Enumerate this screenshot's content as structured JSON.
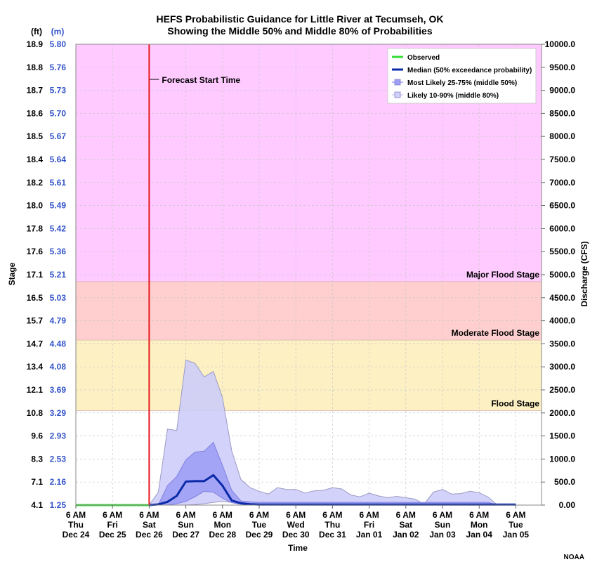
{
  "chart_data": {
    "type": "area",
    "title": "HEFS Probabilistic Guidance for Little River at Tecumseh, OK",
    "subtitle": "Showing the Middle 50% and Middle 80% of Probabilities",
    "xlabel": "Time",
    "ylabel_left": "Stage",
    "ylabel_right": "Discharge (CFS)",
    "unit_ft": "(ft)",
    "unit_m": "(m)",
    "xlim_days": [
      0,
      12.7
    ],
    "ylim_cfs": [
      0,
      10000
    ],
    "x_ticks": [
      {
        "d": 0,
        "l1": "6 AM",
        "l2": "Thu",
        "l3": "Dec 24"
      },
      {
        "d": 1,
        "l1": "6 AM",
        "l2": "Fri",
        "l3": "Dec 25"
      },
      {
        "d": 2,
        "l1": "6 AM",
        "l2": "Sat",
        "l3": "Dec 26"
      },
      {
        "d": 3,
        "l1": "6 AM",
        "l2": "Sun",
        "l3": "Dec 27"
      },
      {
        "d": 4,
        "l1": "6 AM",
        "l2": "Mon",
        "l3": "Dec 28"
      },
      {
        "d": 5,
        "l1": "6 AM",
        "l2": "Tue",
        "l3": "Dec 29"
      },
      {
        "d": 6,
        "l1": "6 AM",
        "l2": "Wed",
        "l3": "Dec 30"
      },
      {
        "d": 7,
        "l1": "6 AM",
        "l2": "Thu",
        "l3": "Dec 31"
      },
      {
        "d": 8,
        "l1": "6 AM",
        "l2": "Fri",
        "l3": "Jan 01"
      },
      {
        "d": 9,
        "l1": "6 AM",
        "l2": "Sat",
        "l3": "Jan 02"
      },
      {
        "d": 10,
        "l1": "6 AM",
        "l2": "Sun",
        "l3": "Jan 03"
      },
      {
        "d": 11,
        "l1": "6 AM",
        "l2": "Mon",
        "l3": "Jan 04"
      },
      {
        "d": 12,
        "l1": "6 AM",
        "l2": "Tue",
        "l3": "Jan 05"
      }
    ],
    "y_ticks": [
      {
        "cfs": 0,
        "ft": "4.1",
        "m": "1.25",
        "r": "0.00"
      },
      {
        "cfs": 500,
        "ft": "7.1",
        "m": "2.16",
        "r": "500.0"
      },
      {
        "cfs": 1000,
        "ft": "8.3",
        "m": "2.53",
        "r": "1000.0"
      },
      {
        "cfs": 1500,
        "ft": "9.6",
        "m": "2.93",
        "r": "1500.0"
      },
      {
        "cfs": 2000,
        "ft": "10.8",
        "m": "3.29",
        "r": "2000.0"
      },
      {
        "cfs": 2500,
        "ft": "12.1",
        "m": "3.69",
        "r": "2500.0"
      },
      {
        "cfs": 3000,
        "ft": "13.4",
        "m": "4.08",
        "r": "3000.0"
      },
      {
        "cfs": 3500,
        "ft": "14.7",
        "m": "4.48",
        "r": "3500.0"
      },
      {
        "cfs": 4000,
        "ft": "15.7",
        "m": "4.79",
        "r": "4000.0"
      },
      {
        "cfs": 4500,
        "ft": "16.5",
        "m": "5.03",
        "r": "4500.0"
      },
      {
        "cfs": 5000,
        "ft": "17.1",
        "m": "5.21",
        "r": "5000.0"
      },
      {
        "cfs": 5500,
        "ft": "17.6",
        "m": "5.36",
        "r": "5500.0"
      },
      {
        "cfs": 6000,
        "ft": "17.8",
        "m": "5.42",
        "r": "6000.0"
      },
      {
        "cfs": 6500,
        "ft": "18.0",
        "m": "5.49",
        "r": "6500.0"
      },
      {
        "cfs": 7000,
        "ft": "18.2",
        "m": "5.61",
        "r": "7000.0"
      },
      {
        "cfs": 7500,
        "ft": "18.4",
        "m": "5.64",
        "r": "7500.0"
      },
      {
        "cfs": 8000,
        "ft": "18.5",
        "m": "5.67",
        "r": "8000.0"
      },
      {
        "cfs": 8500,
        "ft": "18.6",
        "m": "5.70",
        "r": "8500.0"
      },
      {
        "cfs": 9000,
        "ft": "18.7",
        "m": "5.73",
        "r": "9000.0"
      },
      {
        "cfs": 9500,
        "ft": "18.8",
        "m": "5.76",
        "r": "9500.0"
      },
      {
        "cfs": 10000,
        "ft": "18.9",
        "m": "5.80",
        "r": "10000.0"
      }
    ],
    "flood_zones": [
      {
        "name": "Flood Stage",
        "from_cfs": 2050,
        "to_cfs": 3580,
        "color": "#fdf1c4"
      },
      {
        "name": "Moderate Flood Stage",
        "from_cfs": 3580,
        "to_cfs": 4850,
        "color": "#ffcfcf"
      },
      {
        "name": "Major Flood Stage",
        "from_cfs": 4850,
        "to_cfs": 10000,
        "color": "#ffcaff"
      }
    ],
    "forecast_start_day": 2,
    "forecast_start_label": "Forecast Start Time",
    "legend": [
      {
        "label": "Observed",
        "kind": "line",
        "color": "#33dd33"
      },
      {
        "label": "Median (50% exceedance probability)",
        "kind": "line",
        "color": "#0a2aa8"
      },
      {
        "label": "Most Likely 25-75% (middle 50%)",
        "kind": "box",
        "color": "#9e9ef5"
      },
      {
        "label": "Likely 10-90% (middle 80%)",
        "kind": "box",
        "color": "#d0d0f8"
      }
    ],
    "colors": {
      "observed": "#33dd33",
      "median": "#0a2aa8",
      "band80": "#ccccf9",
      "band50": "#9e9ef5",
      "band_edge": "#9a9ac4",
      "forecast_line": "#e8171f",
      "grid": "#c8c8c8",
      "m_label": "#3454c8"
    },
    "observed": {
      "x": [
        0,
        2
      ],
      "y": [
        0,
        0
      ]
    },
    "series": [
      {
        "name": "Likely 10-90% (middle 80%)",
        "x": [
          2.0,
          2.25,
          2.5,
          2.75,
          3.0,
          3.25,
          3.5,
          3.75,
          4.0,
          4.25,
          4.5,
          4.75,
          5.0,
          5.25,
          5.5,
          5.75,
          6.0,
          6.25,
          6.5,
          6.75,
          7.0,
          7.25,
          7.5,
          7.75,
          8.0,
          8.25,
          8.5,
          8.75,
          9.0,
          9.25,
          9.5,
          9.75,
          10.0,
          10.25,
          10.5,
          10.75,
          11.0,
          11.25,
          11.5,
          11.75,
          12.0
        ],
        "low": [
          0,
          0,
          0,
          0,
          0,
          10,
          30,
          60,
          80,
          60,
          30,
          10,
          5,
          0,
          0,
          0,
          0,
          0,
          0,
          0,
          0,
          0,
          0,
          0,
          0,
          0,
          0,
          0,
          0,
          0,
          0,
          0,
          0,
          0,
          0,
          0,
          0,
          0,
          0,
          0,
          0
        ],
        "high": [
          0,
          280,
          1650,
          1620,
          3150,
          3080,
          2780,
          2900,
          2330,
          1180,
          560,
          380,
          300,
          240,
          380,
          340,
          340,
          260,
          310,
          320,
          380,
          350,
          220,
          180,
          260,
          200,
          160,
          190,
          160,
          130,
          20,
          280,
          340,
          240,
          250,
          300,
          270,
          170,
          0,
          0,
          0
        ]
      },
      {
        "name": "Most Likely 25-75% (middle 50%)",
        "x": [
          2.0,
          2.25,
          2.5,
          2.75,
          3.0,
          3.25,
          3.5,
          3.75,
          4.0,
          4.25,
          4.5,
          4.75,
          5.0,
          5.25,
          5.5,
          5.75,
          6.0,
          6.25,
          6.5,
          6.75,
          7.0,
          7.25,
          7.5,
          7.75,
          8.0,
          8.25,
          8.5,
          8.75,
          9.0,
          9.25,
          9.5,
          9.75,
          10.0,
          10.25,
          10.5,
          10.75,
          11.0,
          11.25,
          11.5,
          11.75,
          12.0
        ],
        "low": [
          0,
          0,
          0,
          30,
          80,
          180,
          300,
          280,
          150,
          50,
          20,
          5,
          0,
          0,
          0,
          0,
          0,
          0,
          0,
          0,
          0,
          0,
          0,
          0,
          0,
          0,
          0,
          0,
          0,
          0,
          0,
          0,
          0,
          0,
          0,
          0,
          0,
          0,
          0,
          0,
          0
        ],
        "high": [
          0,
          10,
          420,
          620,
          980,
          1150,
          1170,
          1360,
          860,
          320,
          90,
          70,
          60,
          60,
          60,
          60,
          60,
          60,
          60,
          60,
          60,
          60,
          60,
          60,
          60,
          60,
          60,
          60,
          60,
          60,
          60,
          60,
          60,
          60,
          60,
          60,
          60,
          60,
          0,
          0,
          0
        ]
      },
      {
        "name": "Median (50% exceedance probability)",
        "x": [
          2.0,
          2.25,
          2.5,
          2.75,
          3.0,
          3.25,
          3.5,
          3.75,
          4.0,
          4.25,
          4.5,
          4.75,
          5.0,
          5.25,
          5.5,
          5.75,
          6.0,
          7.0,
          8.0,
          9.0,
          10.0,
          11.0,
          12.0
        ],
        "values": [
          0,
          15,
          70,
          200,
          510,
          520,
          520,
          650,
          420,
          100,
          40,
          20,
          10,
          10,
          10,
          10,
          10,
          10,
          10,
          10,
          10,
          10,
          10
        ]
      }
    ]
  },
  "footer_credit": "NOAA"
}
